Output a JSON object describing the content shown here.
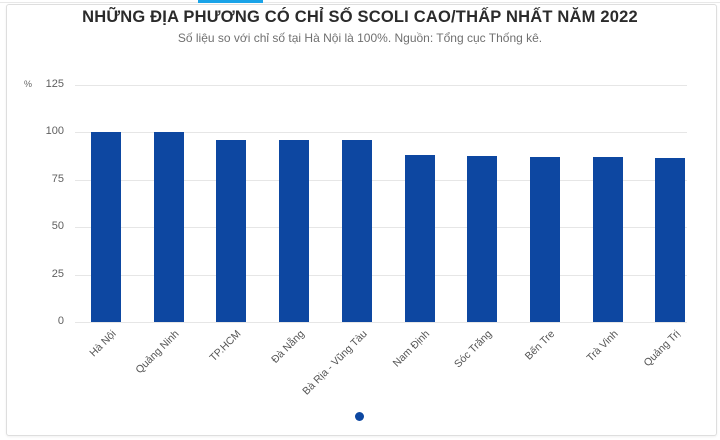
{
  "header": {
    "title": "NHỮNG ĐỊA PHƯƠNG CÓ CHỈ SỐ SCOLI CAO/THẤP NHẤT NĂM 2022",
    "subtitle": "Số liệu so với chỉ số tại Hà Nội là 100%. Nguồn: Tổng cục Thống kê."
  },
  "colors": {
    "bar": "#0d47a1",
    "accent": "#1aa3e8",
    "pager_dot": "#0d47a1"
  },
  "pager": {
    "active_index": 0,
    "count": 1
  },
  "chart_data": {
    "type": "bar",
    "title": "NHỮNG ĐỊA PHƯƠNG CÓ CHỈ SỐ SCOLI CAO/THẤP NHẤT NĂM 2022",
    "subtitle": "Số liệu so với chỉ số tại Hà Nội là 100%. Nguồn: Tổng cục Thống kê.",
    "xlabel": "",
    "ylabel": "%",
    "ylim": [
      0,
      125
    ],
    "yticks": [
      "0",
      "25",
      "50",
      "75",
      "100",
      "125"
    ],
    "grid": true,
    "legend": "none",
    "categories": [
      "Hà Nội",
      "Quảng Ninh",
      "TP.HCM",
      "Đà Nẵng",
      "Bà Rịa - Vũng Tàu",
      "Nam Định",
      "Sóc Trăng",
      "Bến Tre",
      "Trà Vinh",
      "Quảng Trị"
    ],
    "values": [
      100,
      99.9,
      95.8,
      95.8,
      95.8,
      87.9,
      87.4,
      86.8,
      86.7,
      86.3
    ]
  }
}
